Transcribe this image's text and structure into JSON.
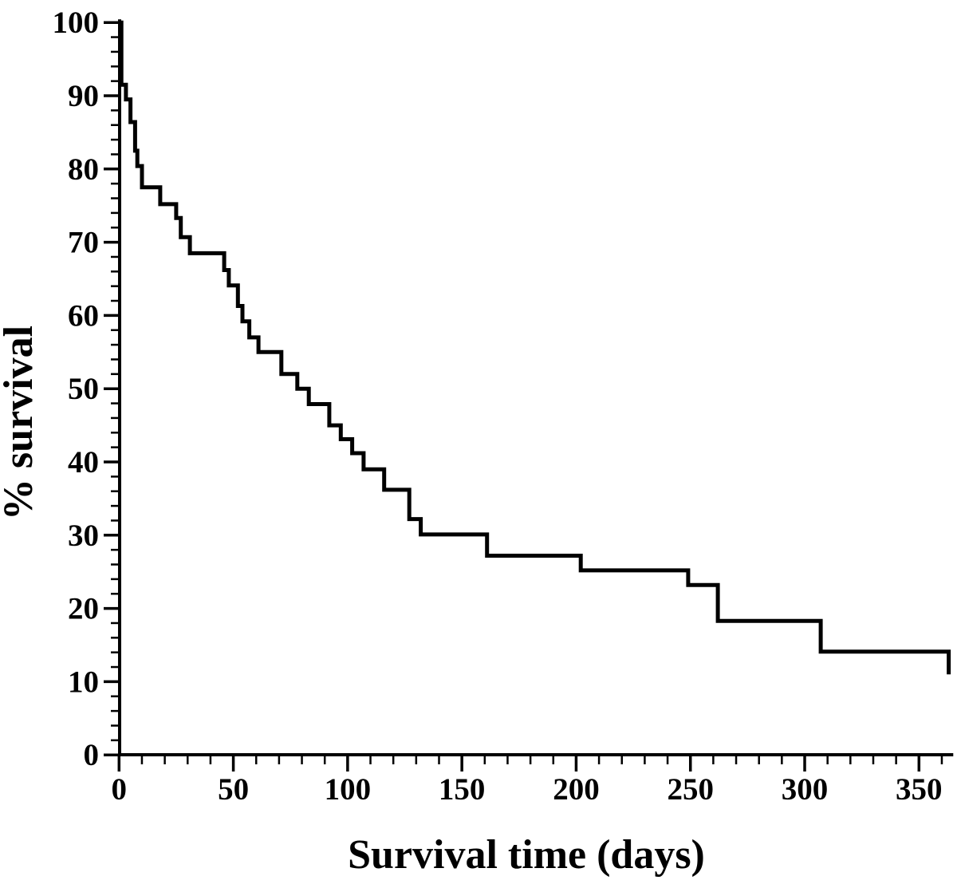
{
  "chart_data": {
    "type": "line",
    "subtype": "kaplan-meier-step-curve",
    "title": "",
    "xlabel": "Survival time (days)",
    "ylabel": "% survival",
    "xlim": [
      0,
      365
    ],
    "ylim": [
      0,
      100
    ],
    "x_major_ticks": [
      0,
      50,
      100,
      150,
      200,
      250,
      300,
      350
    ],
    "x_minor_tick_step": 10,
    "x_minor_tick_max": 360,
    "y_major_ticks": [
      0,
      10,
      20,
      30,
      40,
      50,
      60,
      70,
      80,
      90,
      100
    ],
    "y_minor_tick_step": 2,
    "grid": false,
    "legend": null,
    "series": [
      {
        "name": "survival",
        "steps_day_percent": [
          [
            0,
            100
          ],
          [
            1,
            91.5
          ],
          [
            3,
            89.5
          ],
          [
            5,
            86.4
          ],
          [
            7,
            82.5
          ],
          [
            8,
            80.4
          ],
          [
            10,
            77.5
          ],
          [
            18,
            75.2
          ],
          [
            25,
            73.3
          ],
          [
            27,
            70.7
          ],
          [
            31,
            68.5
          ],
          [
            46,
            66.2
          ],
          [
            48,
            64.1
          ],
          [
            52,
            61.3
          ],
          [
            54,
            59.2
          ],
          [
            57,
            57.0
          ],
          [
            61,
            55.0
          ],
          [
            71,
            52.0
          ],
          [
            78,
            50.0
          ],
          [
            83,
            47.9
          ],
          [
            92,
            45.0
          ],
          [
            97,
            43.1
          ],
          [
            102,
            41.2
          ],
          [
            107,
            39.0
          ],
          [
            116,
            36.2
          ],
          [
            127,
            32.2
          ],
          [
            132,
            30.1
          ],
          [
            161,
            27.2
          ],
          [
            202,
            25.2
          ],
          [
            249,
            23.2
          ],
          [
            262,
            18.3
          ],
          [
            307,
            14.1
          ],
          [
            363,
            11.0
          ]
        ]
      }
    ]
  },
  "colors": {
    "curve": "#000000",
    "axis": "#000000",
    "text": "#000000",
    "background": "#ffffff"
  }
}
